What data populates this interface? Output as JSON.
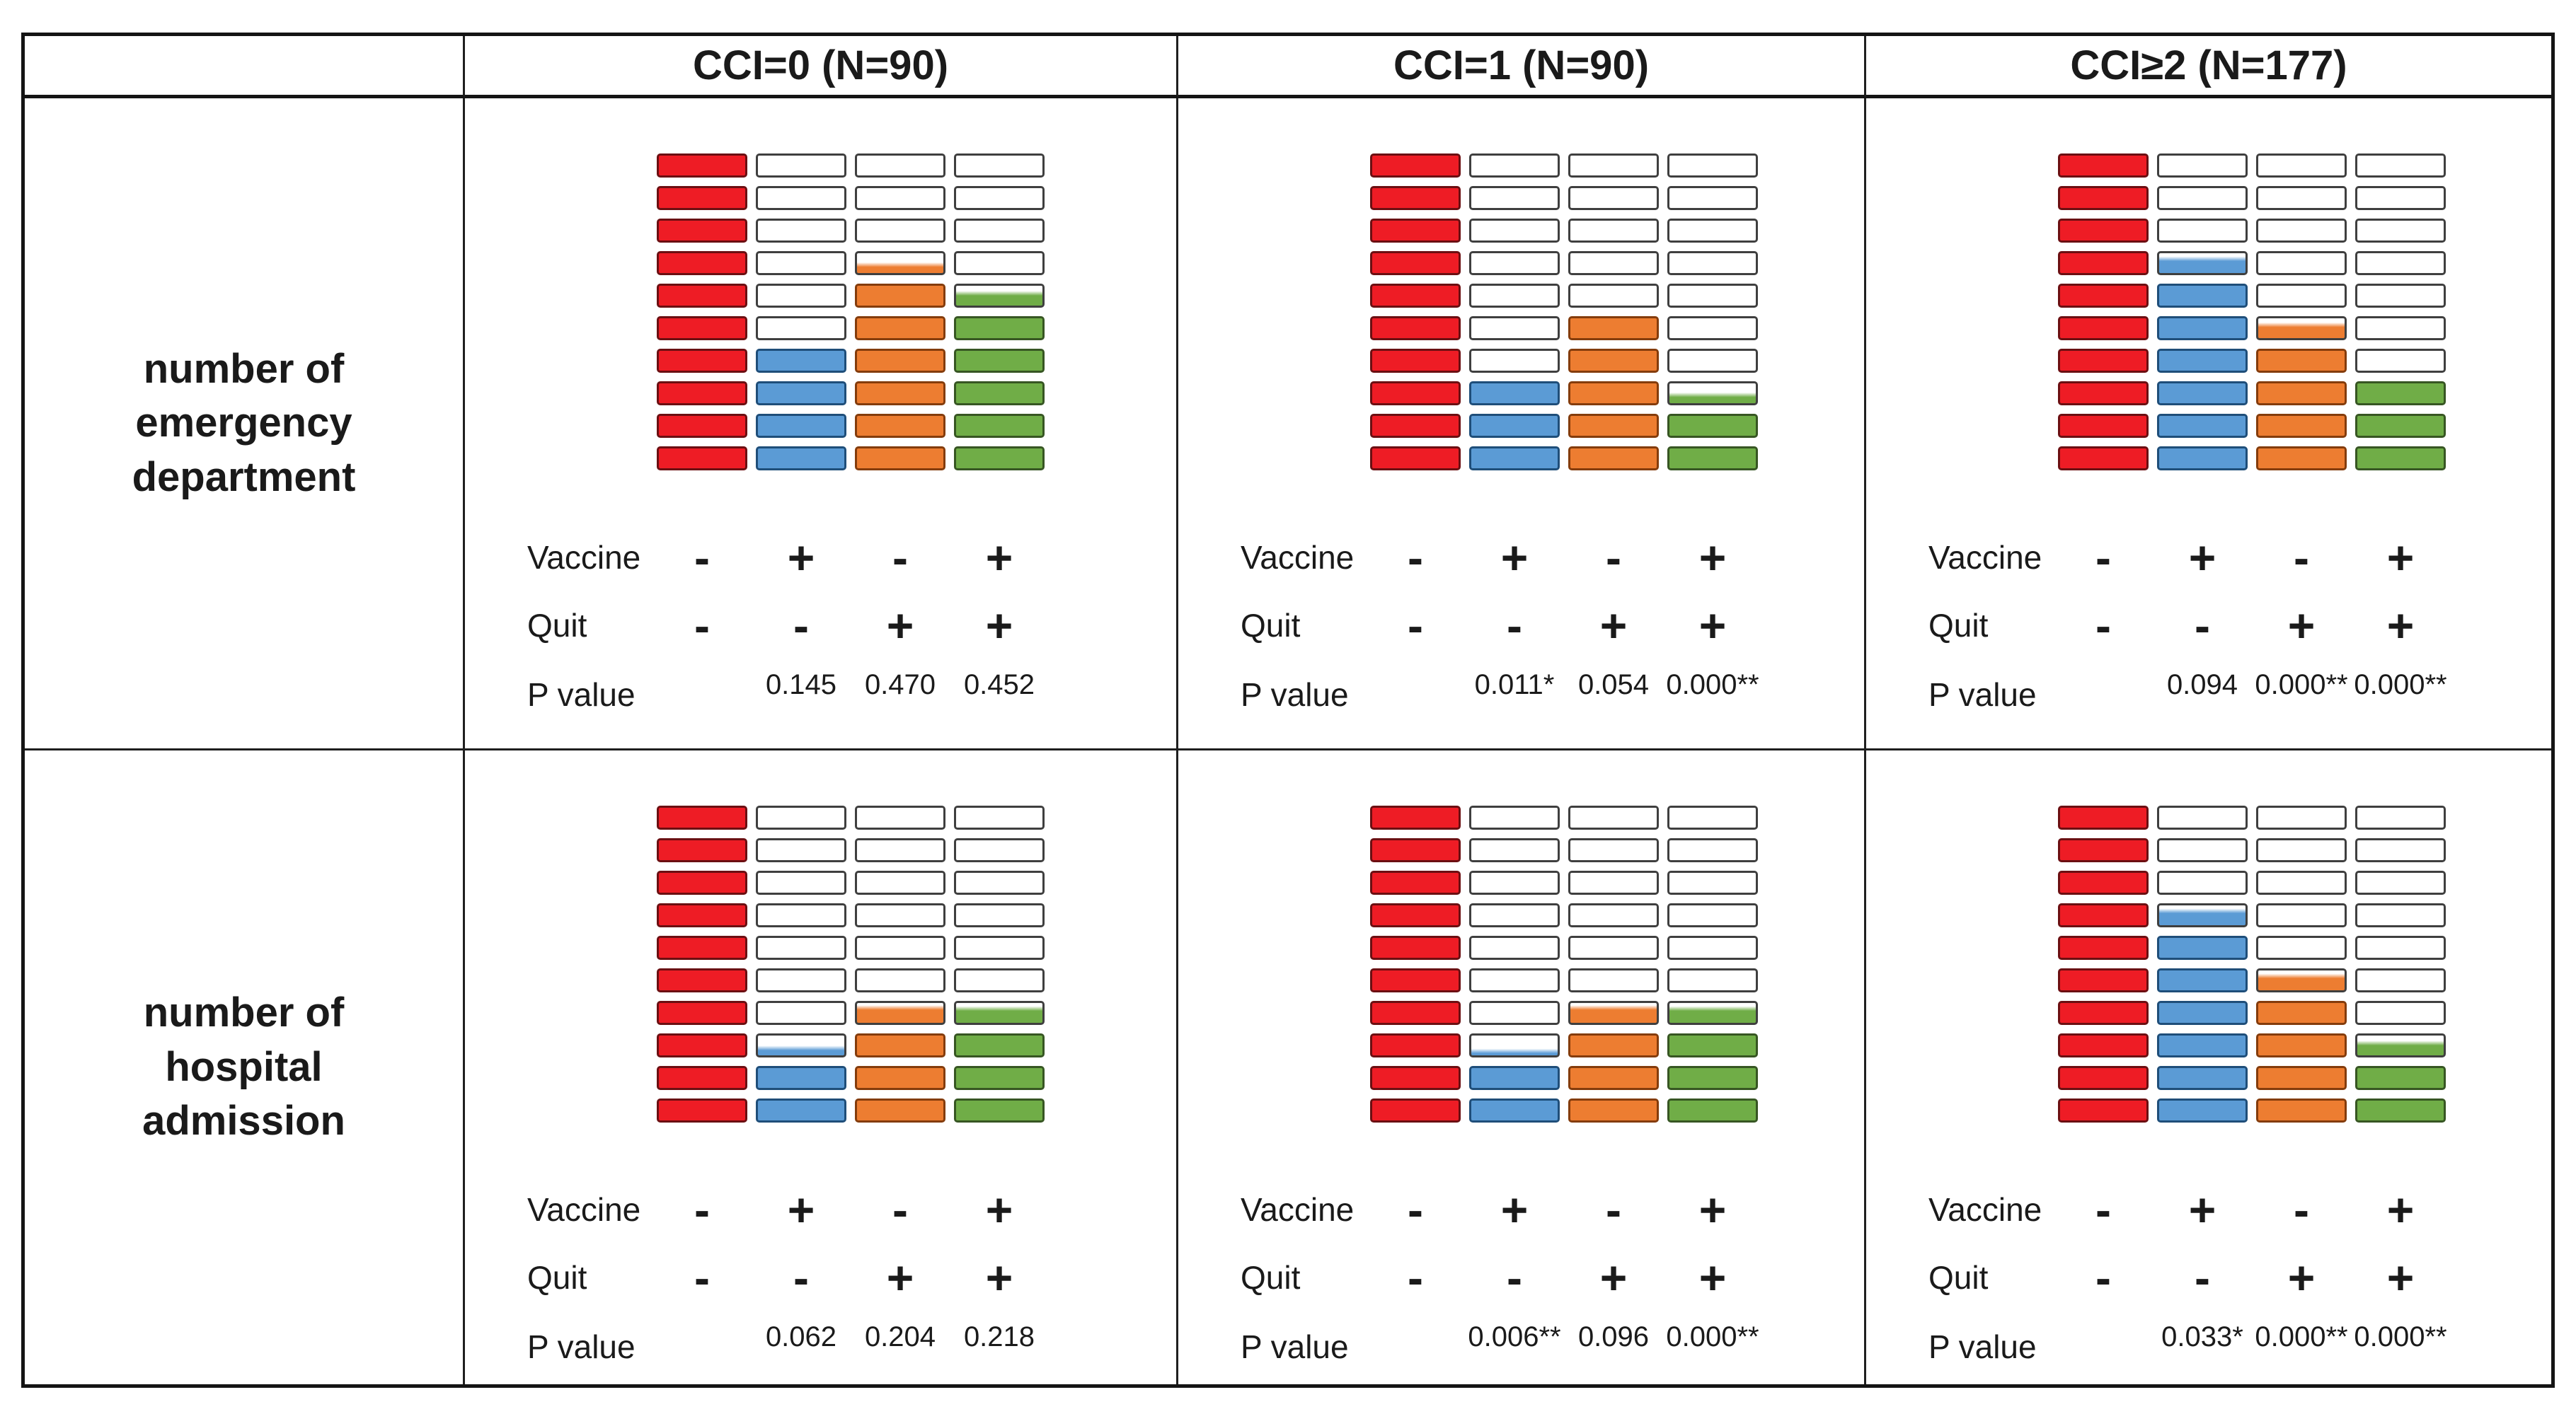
{
  "figure": {
    "columns": [
      {
        "header": "CCI=0 (N=90)"
      },
      {
        "header": "CCI=1 (N=90)"
      },
      {
        "header": "CCI≥2 (N=177)"
      }
    ],
    "rows": [
      {
        "label": "number of\nemergency\ndepartment"
      },
      {
        "label": "number of\nhospital\nadmission"
      }
    ],
    "legend": {
      "vaccine": "Vaccine",
      "quit": "Quit",
      "pvalue": "P value"
    }
  },
  "chart_data": {
    "type": "pictograph",
    "description": "Waffle/pictograph chart: each group shows 4 stacks of 10 rectangle icons. Red stack (no vaccine, no quit) is the full reference (10/10). Blue (vaccine only), orange (quit only) and green (vaccine + quit) stacks are filled from the bottom in proportion to the outcome relative to the red reference; fractional icons are drawn partially filled. P values compare each stack against the red reference.",
    "icons_per_stack": 10,
    "legend_position": "below-stacks",
    "colors": {
      "red": "#ee1c25",
      "blue": "#5b9bd5",
      "orange": "#ed7d31",
      "green": "#70ad47"
    },
    "border_colors": {
      "red": "#6b0f12",
      "blue": "#1f4e79",
      "orange": "#843c0c",
      "green": "#375623",
      "empty": "#3f3f3f"
    },
    "cells": [
      {
        "row": "number of emergency department",
        "column": "CCI=0 (N=90)",
        "stacks": [
          {
            "vaccine": "-",
            "quit": "-",
            "color": "red",
            "filled_icons": 10,
            "p_value": null
          },
          {
            "vaccine": "+",
            "quit": "-",
            "color": "blue",
            "filled_icons": 4.0,
            "p_value": "0.145"
          },
          {
            "vaccine": "-",
            "quit": "+",
            "color": "orange",
            "filled_icons": 6.4,
            "p_value": "0.470"
          },
          {
            "vaccine": "+",
            "quit": "+",
            "color": "green",
            "filled_icons": 5.6,
            "p_value": "0.452"
          }
        ]
      },
      {
        "row": "number of emergency department",
        "column": "CCI=1 (N=90)",
        "stacks": [
          {
            "vaccine": "-",
            "quit": "-",
            "color": "red",
            "filled_icons": 10,
            "p_value": null
          },
          {
            "vaccine": "+",
            "quit": "-",
            "color": "blue",
            "filled_icons": 3.0,
            "p_value": "0.011*"
          },
          {
            "vaccine": "-",
            "quit": "+",
            "color": "orange",
            "filled_icons": 5.0,
            "p_value": "0.054"
          },
          {
            "vaccine": "+",
            "quit": "+",
            "color": "green",
            "filled_icons": 2.4,
            "p_value": "0.000**"
          }
        ]
      },
      {
        "row": "number of emergency department",
        "column": "CCI≥2 (N=177)",
        "stacks": [
          {
            "vaccine": "-",
            "quit": "-",
            "color": "red",
            "filled_icons": 10,
            "p_value": null
          },
          {
            "vaccine": "+",
            "quit": "-",
            "color": "blue",
            "filled_icons": 6.7,
            "p_value": "0.094"
          },
          {
            "vaccine": "-",
            "quit": "+",
            "color": "orange",
            "filled_icons": 4.65,
            "p_value": "0.000**"
          },
          {
            "vaccine": "+",
            "quit": "+",
            "color": "green",
            "filled_icons": 3.0,
            "p_value": "0.000**"
          }
        ]
      },
      {
        "row": "number of hospital admission",
        "column": "CCI=0 (N=90)",
        "stacks": [
          {
            "vaccine": "-",
            "quit": "-",
            "color": "red",
            "filled_icons": 10,
            "p_value": null
          },
          {
            "vaccine": "+",
            "quit": "-",
            "color": "blue",
            "filled_icons": 2.35,
            "p_value": "0.062"
          },
          {
            "vaccine": "-",
            "quit": "+",
            "color": "orange",
            "filled_icons": 3.75,
            "p_value": "0.204"
          },
          {
            "vaccine": "+",
            "quit": "+",
            "color": "green",
            "filled_icons": 3.7,
            "p_value": "0.218"
          }
        ]
      },
      {
        "row": "number of hospital admission",
        "column": "CCI=1 (N=90)",
        "stacks": [
          {
            "vaccine": "-",
            "quit": "-",
            "color": "red",
            "filled_icons": 10,
            "p_value": null
          },
          {
            "vaccine": "+",
            "quit": "-",
            "color": "blue",
            "filled_icons": 2.2,
            "p_value": "0.006**"
          },
          {
            "vaccine": "-",
            "quit": "+",
            "color": "orange",
            "filled_icons": 3.75,
            "p_value": "0.096"
          },
          {
            "vaccine": "+",
            "quit": "+",
            "color": "green",
            "filled_icons": 3.7,
            "p_value": "0.000**"
          }
        ]
      },
      {
        "row": "number of hospital admission",
        "column": "CCI≥2 (N=177)",
        "stacks": [
          {
            "vaccine": "-",
            "quit": "-",
            "color": "red",
            "filled_icons": 10,
            "p_value": null
          },
          {
            "vaccine": "+",
            "quit": "-",
            "color": "blue",
            "filled_icons": 6.7,
            "p_value": "0.033*"
          },
          {
            "vaccine": "-",
            "quit": "+",
            "color": "orange",
            "filled_icons": 4.7,
            "p_value": "0.000**"
          },
          {
            "vaccine": "+",
            "quit": "+",
            "color": "green",
            "filled_icons": 2.6,
            "p_value": "0.000**"
          }
        ]
      }
    ]
  }
}
